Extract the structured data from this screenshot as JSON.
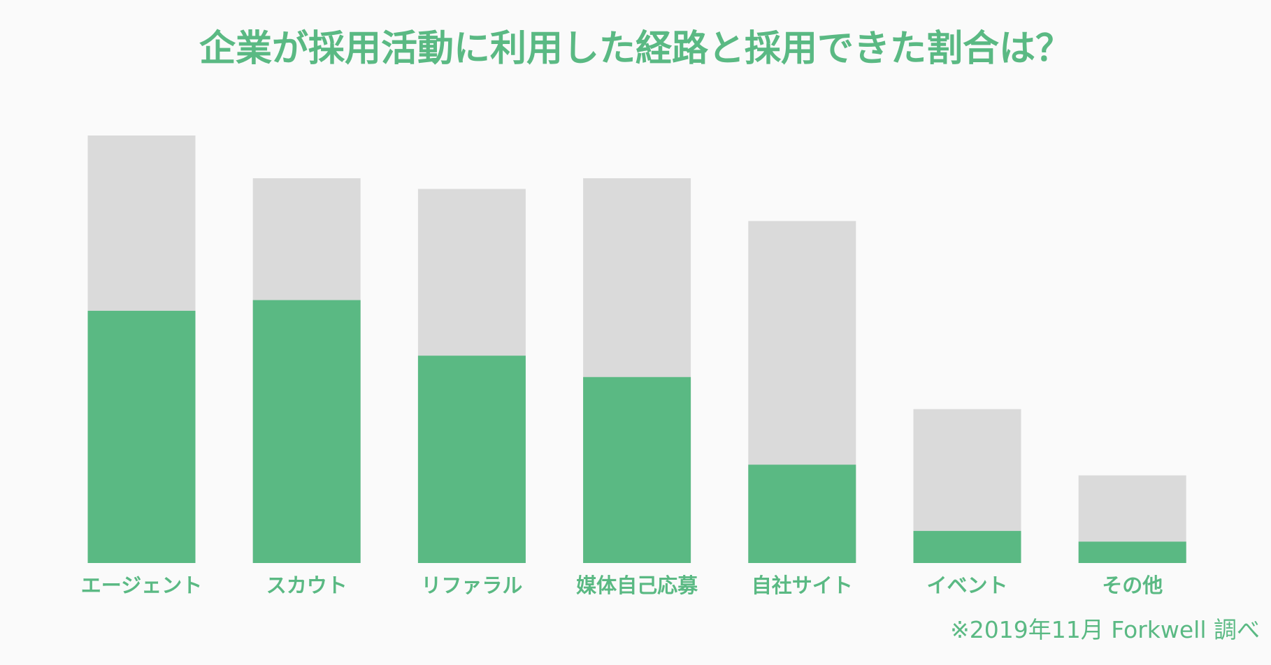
{
  "colors": {
    "accent": "#5ab983",
    "background": "#fafafa",
    "total_bar": "#dadada",
    "hired_bar": "#5ab983"
  },
  "chart_data": {
    "type": "bar",
    "stacked": "overlay",
    "title": "企業が採用活動に利用した経路と採用できた割合は？",
    "categories": [
      "エージェント",
      "スカウト",
      "リファラル",
      "媒体自己応募",
      "自社サイト",
      "イベント",
      "その他"
    ],
    "series": [
      {
        "values": [
          100,
          90,
          87.5,
          90,
          80,
          36,
          20.5
        ]
      },
      {
        "values": [
          59,
          61.5,
          48.5,
          43.5,
          23,
          7.5,
          5
        ]
      }
    ],
    "ylim": [
      0,
      100
    ],
    "grid": false,
    "legend": "none",
    "xlabel": "",
    "ylabel": ""
  },
  "footer": {
    "source_note": "※2019年11月 Forkwell 調べ"
  }
}
